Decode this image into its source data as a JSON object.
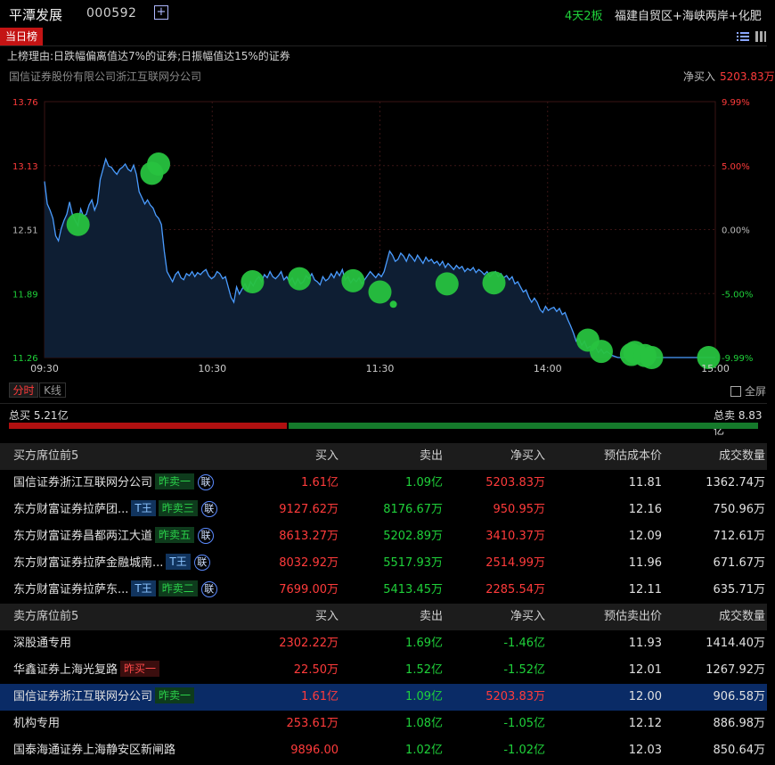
{
  "header": {
    "stock_name": "平潭发展",
    "stock_code": "000592",
    "add_label": "+",
    "limit_badge": "4天2板",
    "concepts": "福建自贸区+海峡两岸+化肥"
  },
  "tabbar": {
    "tab_today": "当日榜"
  },
  "reason": "上榜理由:日跌幅偏离值达7%的证券;日振幅值达15%的证券",
  "broker": {
    "name": "国信证券股份有限公司浙江互联网分公司",
    "net_label": "净买入",
    "net_value": "5203.83万"
  },
  "chart_data": {
    "type": "line",
    "x_ticks": [
      "09:30",
      "10:30",
      "11:30",
      "14:00",
      "15:00"
    ],
    "y_ticks_left": [
      "13.76",
      "13.13",
      "12.51",
      "11.89",
      "11.26"
    ],
    "y_ticks_right": [
      "9.99%",
      "5.00%",
      "0.00%",
      "-5.00%",
      "-9.99%"
    ],
    "ylim": [
      11.26,
      13.76
    ],
    "series": [
      {
        "values": [
          12.98,
          12.76,
          12.7,
          12.62,
          12.45,
          12.4,
          12.52,
          12.6,
          12.66,
          12.78,
          12.66,
          12.6,
          12.55,
          12.71,
          12.64,
          12.66,
          12.75,
          12.8,
          12.7,
          12.77,
          13.0,
          13.1,
          13.2,
          13.13,
          13.12,
          13.08,
          13.05,
          13.1,
          13.12,
          13.15,
          13.1,
          13.08,
          13.14,
          13.05,
          12.88,
          12.82,
          12.76,
          12.8,
          12.75,
          12.72,
          12.65,
          12.62,
          12.56,
          12.3,
          12.1,
          12.05,
          12.0,
          12.07,
          12.1,
          12.04,
          12.02,
          12.08,
          12.06,
          12.1,
          12.05,
          12.09,
          12.07,
          12.1,
          12.12,
          12.06,
          12.03,
          12.05,
          12.1,
          12.08,
          12.03,
          12.05,
          11.95,
          11.85,
          11.8,
          11.95,
          11.88,
          11.93,
          11.98,
          11.92,
          12.0,
          11.96,
          12.02,
          12.05,
          12.0,
          12.07,
          12.04,
          12.1,
          12.05,
          12.03,
          12.06,
          12.1,
          12.02,
          12.05,
          12.0,
          12.04,
          11.97,
          12.03,
          11.98,
          12.0,
          12.06,
          12.03,
          12.08,
          12.02,
          12.0,
          11.97,
          12.05,
          12.01,
          12.03,
          12.08,
          12.04,
          12.1,
          12.06,
          12.12,
          12.02,
          12.05,
          11.99,
          12.03,
          12.0,
          12.04,
          11.98,
          12.02,
          12.06,
          12.1,
          12.07,
          12.04,
          12.08,
          12.05,
          12.1,
          12.2,
          12.3,
          12.26,
          12.2,
          12.22,
          12.28,
          12.25,
          12.2,
          12.27,
          12.24,
          12.2,
          12.26,
          12.22,
          12.18,
          12.24,
          12.2,
          12.22,
          12.18,
          12.2,
          12.16,
          12.2,
          12.14,
          12.18,
          12.15,
          12.12,
          12.16,
          12.13,
          12.15,
          12.1,
          12.13,
          12.11,
          12.14,
          12.09,
          12.12,
          12.1,
          12.07,
          12.1,
          12.05,
          12.08,
          12.1,
          12.05,
          12.08,
          12.04,
          12.06,
          12.02,
          12.05,
          11.98,
          12.0,
          11.95,
          11.9,
          11.92,
          11.85,
          11.8,
          11.84,
          11.8,
          11.73,
          11.7,
          11.76,
          11.72,
          11.74,
          11.75,
          11.71,
          11.74,
          11.68,
          11.7,
          11.63,
          11.57,
          11.5,
          11.42,
          11.45,
          11.38,
          11.42,
          11.35,
          11.37,
          11.33,
          11.36,
          11.31,
          11.34,
          11.3,
          11.32,
          11.3,
          11.28,
          11.27,
          11.26,
          11.26,
          11.26,
          11.26,
          11.26,
          11.26,
          11.26,
          11.26,
          11.26,
          11.26,
          11.26,
          11.26,
          11.26,
          11.26,
          11.26,
          11.26,
          11.26,
          11.26,
          11.26,
          11.26,
          11.26,
          11.26,
          11.26,
          11.26,
          11.26,
          11.26,
          11.26,
          11.26,
          11.26,
          11.26,
          11.26,
          11.26,
          11.26,
          11.26,
          11.26,
          11.26
        ]
      }
    ],
    "trade_markers": [
      {
        "t": 0.05,
        "price": 12.56
      },
      {
        "t": 0.16,
        "price": 13.06
      },
      {
        "t": 0.17,
        "price": 13.15
      },
      {
        "t": 0.31,
        "price": 12.0
      },
      {
        "t": 0.38,
        "price": 12.03
      },
      {
        "t": 0.46,
        "price": 12.01
      },
      {
        "t": 0.5,
        "price": 11.9
      },
      {
        "t": 0.6,
        "price": 11.98
      },
      {
        "t": 0.67,
        "price": 11.99
      },
      {
        "t": 0.81,
        "price": 11.43
      },
      {
        "t": 0.83,
        "price": 11.32
      },
      {
        "t": 0.875,
        "price": 11.29
      },
      {
        "t": 0.88,
        "price": 11.31
      },
      {
        "t": 0.895,
        "price": 11.28
      },
      {
        "t": 0.905,
        "price": 11.26
      },
      {
        "t": 0.99,
        "price": 11.26
      }
    ],
    "small_marker": {
      "t": 0.52,
      "price": 11.78
    }
  },
  "chart_tabs": {
    "fenshi": "分时",
    "kline": "K线",
    "fullscreen": "全屏"
  },
  "totals": {
    "buy_label": "总买",
    "buy_value": "5.21亿",
    "sell_label": "总卖",
    "sell_value": "8.83亿",
    "buy_share": 0.371
  },
  "buy_table": {
    "headers": [
      "买方席位前5",
      "买入",
      "卖出",
      "净买入",
      "预估成本价",
      "成交数量"
    ],
    "rows": [
      {
        "name": "国信证券浙江互联网分公司",
        "tags": [
          {
            "text": "昨卖一",
            "kind": "green"
          }
        ],
        "lian": true,
        "buy": "1.61亿",
        "sell": "1.09亿",
        "net": "5203.83万",
        "cost": "11.81",
        "vol": "1362.74万"
      },
      {
        "name": "东方财富证券拉萨团...",
        "tags": [
          {
            "text": "T王",
            "kind": "blue"
          },
          {
            "text": "昨卖三",
            "kind": "green"
          }
        ],
        "lian": true,
        "buy": "9127.62万",
        "sell": "8176.67万",
        "net": "950.95万",
        "cost": "12.16",
        "vol": "750.96万"
      },
      {
        "name": "东方财富证券昌都两江大道",
        "tags": [
          {
            "text": "昨卖五",
            "kind": "green"
          }
        ],
        "lian": true,
        "buy": "8613.27万",
        "sell": "5202.89万",
        "net": "3410.37万",
        "cost": "12.09",
        "vol": "712.61万"
      },
      {
        "name": "东方财富证券拉萨金融城南...",
        "tags": [
          {
            "text": "T王",
            "kind": "blue"
          }
        ],
        "lian": true,
        "buy": "8032.92万",
        "sell": "5517.93万",
        "net": "2514.99万",
        "cost": "11.96",
        "vol": "671.67万"
      },
      {
        "name": "东方财富证券拉萨东...",
        "tags": [
          {
            "text": "T王",
            "kind": "blue"
          },
          {
            "text": "昨卖二",
            "kind": "green"
          }
        ],
        "lian": true,
        "buy": "7699.00万",
        "sell": "5413.45万",
        "net": "2285.54万",
        "cost": "12.11",
        "vol": "635.71万"
      }
    ]
  },
  "sell_table": {
    "headers": [
      "卖方席位前5",
      "买入",
      "卖出",
      "净买入",
      "预估卖出价",
      "成交数量"
    ],
    "rows": [
      {
        "name": "深股通专用",
        "tags": [],
        "lian": false,
        "buy": "2302.22万",
        "sell": "1.69亿",
        "net": "-1.46亿",
        "cost": "11.93",
        "vol": "1414.40万",
        "selected": false
      },
      {
        "name": "华鑫证券上海光复路",
        "tags": [
          {
            "text": "昨买一",
            "kind": "red"
          }
        ],
        "lian": false,
        "buy": "22.50万",
        "sell": "1.52亿",
        "net": "-1.52亿",
        "cost": "12.01",
        "vol": "1267.92万",
        "selected": false
      },
      {
        "name": "国信证券浙江互联网分公司",
        "tags": [
          {
            "text": "昨卖一",
            "kind": "green"
          }
        ],
        "lian": false,
        "buy": "1.61亿",
        "sell": "1.09亿",
        "net": "5203.83万",
        "cost": "12.00",
        "vol": "906.58万",
        "selected": true
      },
      {
        "name": "机构专用",
        "tags": [],
        "lian": false,
        "buy": "253.61万",
        "sell": "1.08亿",
        "net": "-1.05亿",
        "cost": "12.12",
        "vol": "886.98万",
        "selected": false
      },
      {
        "name": "国泰海通证券上海静安区新闸路",
        "tags": [],
        "lian": false,
        "buy": "9896.00",
        "sell": "1.02亿",
        "net": "-1.02亿",
        "cost": "12.03",
        "vol": "850.64万",
        "selected": false
      }
    ]
  },
  "colors": {
    "up": "#ff3b3b",
    "down": "#1fd13a",
    "line": "#4a9cff",
    "marker": "#27c23f"
  }
}
